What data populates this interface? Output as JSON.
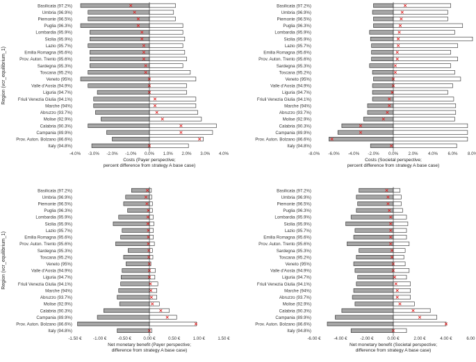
{
  "colors": {
    "low_bar": "#a6a6a6",
    "high_bar": "#ffffff",
    "bar_stroke": "#222222",
    "marker": "#e02020",
    "base_line": "#333333"
  },
  "regions": [
    "Basilicata (97.2%)",
    "Umbria (96.9%)",
    "Piemonte (96.5%)",
    "Puglia (96.3%)",
    "Lombardia (95.9%)",
    "Sicilia (95.9%)",
    "Lazio (95.7%)",
    "Emilia Romagna (95.6%)",
    "Prov. Auton. Trento (95.6%)",
    "Sardegna (95.3%)",
    "Toscana (95.2%)",
    "Veneto (95%)",
    "Valle d'Aosta (94.9%)",
    "Liguria (94.7%)",
    "Friuli Venezia Giulia (94.1%)",
    "Marche (94%)",
    "Abruzzo (93.7%)",
    "Molise (92.9%)",
    "Calabria (90.3%)",
    "Campania (89.9%)",
    "Prov. Auton. Bolzano (86.6%)",
    "Italy (94.8%)"
  ],
  "chart_data": [
    {
      "type": "bar",
      "subtype": "tornado-range",
      "panel": "top-left",
      "title": "",
      "ylabel": "Region (vcr_equilibrium_1)",
      "xlabel_line1": "Costs (Payer perspective;",
      "xlabel_line2": "percent difference from strategy A base case)",
      "xlim": [
        -4.0,
        4.0
      ],
      "xticks": [
        -4,
        -3,
        -2,
        -1,
        0,
        1,
        2,
        3,
        4
      ],
      "xtick_labels": [
        "-4.0%",
        "-3.0%",
        "-2.0%",
        "-1.0%",
        "0.0%",
        "1.0%",
        "2.0%",
        "3.0%",
        "4.0%"
      ],
      "series": [
        {
          "name": "low",
          "values": [
            -3.7,
            -3.3,
            -3.3,
            -3.7,
            -3.2,
            -3.2,
            -3.3,
            -3.2,
            -3.2,
            -3.2,
            -3.3,
            -3.7,
            -3.3,
            -2.8,
            -3.0,
            -3.0,
            -2.9,
            -2.6,
            -3.3,
            -2.3,
            -2.0,
            -3.1
          ]
        },
        {
          "name": "high",
          "values": [
            1.4,
            1.3,
            1.4,
            1.8,
            1.8,
            1.9,
            1.8,
            1.9,
            2.0,
            1.8,
            2.2,
            2.5,
            2.0,
            2.0,
            2.5,
            2.5,
            2.6,
            2.8,
            3.6,
            3.4,
            2.9,
            2.1
          ]
        },
        {
          "name": "base",
          "values": [
            -1.0,
            -0.8,
            -0.6,
            -0.6,
            -0.4,
            -0.4,
            -0.3,
            -0.3,
            -0.3,
            -0.2,
            -0.2,
            0.0,
            0.0,
            0.0,
            0.3,
            0.3,
            0.4,
            0.7,
            1.7,
            1.7,
            2.7,
            0.0
          ]
        }
      ]
    },
    {
      "type": "bar",
      "subtype": "tornado-range",
      "panel": "top-right",
      "title": "",
      "ylabel": "",
      "xlabel_line1": "Costs (Societal perspective;",
      "xlabel_line2": "percent difference from strategy A base case)",
      "xlim": [
        -8.0,
        8.0
      ],
      "xticks": [
        -8,
        -6,
        -4,
        -2,
        0,
        2,
        4,
        6,
        8
      ],
      "xtick_labels": [
        "-8.0%",
        "-6.0%",
        "-4.0%",
        "-2.0%",
        "0.0%",
        "2.0%",
        "4.0%",
        "6.0%",
        "8.0%"
      ],
      "series": [
        {
          "name": "low",
          "values": [
            -2.0,
            -2.1,
            -2.0,
            -2.0,
            -2.4,
            -2.3,
            -2.2,
            -2.2,
            -2.2,
            -2.4,
            -2.1,
            -2.0,
            -2.1,
            -2.1,
            -2.1,
            -2.6,
            -2.6,
            -3.0,
            -5.2,
            -5.6,
            -6.5,
            -2.3
          ]
        },
        {
          "name": "high",
          "values": [
            5.8,
            5.5,
            5.5,
            7.0,
            6.2,
            8.0,
            6.5,
            5.8,
            6.5,
            5.8,
            6.2,
            6.8,
            6.0,
            5.5,
            6.1,
            6.3,
            6.3,
            6.2,
            7.5,
            7.5,
            7.5,
            6.4
          ]
        },
        {
          "name": "base",
          "values": [
            1.2,
            0.9,
            0.8,
            0.7,
            0.6,
            0.5,
            0.5,
            0.4,
            0.4,
            0.2,
            0.2,
            0.0,
            0.0,
            -0.1,
            -0.4,
            -0.4,
            -0.6,
            -1.0,
            -3.3,
            -3.3,
            -6.2,
            -0.2
          ]
        }
      ]
    },
    {
      "type": "bar",
      "subtype": "tornado-range",
      "panel": "bottom-left",
      "title": "",
      "ylabel": "Region (vcr_equilibrium_1)",
      "xlabel_line1": "Net monetary benefit (Payer perspective;",
      "xlabel_line2": "difference from strategy A base case)",
      "xlim": [
        -1.5,
        1.5
      ],
      "xticks": [
        -1.5,
        -1.0,
        -0.5,
        0,
        0.5,
        1.0,
        1.5
      ],
      "xtick_labels": [
        "-1.50 €",
        "-1.00 €",
        "-0.50 €",
        "0.00 €",
        "0.50 €",
        "1.00 €",
        "1.50 €"
      ],
      "series": [
        {
          "name": "low",
          "values": [
            -0.36,
            -0.48,
            -0.52,
            -0.44,
            -0.62,
            -0.73,
            -0.55,
            -0.58,
            -0.68,
            -0.43,
            -0.52,
            -0.47,
            -0.55,
            -0.57,
            -0.58,
            -0.62,
            -0.65,
            -0.6,
            -0.92,
            -1.05,
            -1.45,
            -0.65
          ]
        },
        {
          "name": "high",
          "values": [
            0.04,
            0.05,
            0.06,
            0.06,
            0.08,
            0.09,
            0.08,
            0.08,
            0.1,
            0.06,
            0.07,
            0.03,
            0.12,
            0.11,
            0.17,
            0.15,
            0.15,
            0.2,
            0.4,
            0.55,
            0.95,
            0.05
          ]
        },
        {
          "name": "base",
          "values": [
            -0.04,
            -0.07,
            -0.05,
            -0.02,
            -0.03,
            -0.03,
            -0.02,
            -0.02,
            -0.02,
            -0.01,
            -0.01,
            0.0,
            0.0,
            0.0,
            0.02,
            0.03,
            0.04,
            0.06,
            0.23,
            0.36,
            0.94,
            0.0
          ]
        }
      ]
    },
    {
      "type": "bar",
      "subtype": "tornado-range",
      "panel": "bottom-right",
      "title": "",
      "ylabel": "",
      "xlabel_line1": "Net monetary benefit (Societal perspective;",
      "xlabel_line2": "difference from strategy A base case)",
      "xlim": [
        -6.0,
        6.0
      ],
      "xticks": [
        -6,
        -4,
        -2,
        0,
        2,
        4,
        6
      ],
      "xtick_labels": [
        "-6.00 €",
        "-4.00 €",
        "-2.00 €",
        "0.00 €",
        "2.00 €",
        "4.00 €",
        "6.00 €"
      ],
      "series": [
        {
          "name": "low",
          "values": [
            -2.6,
            -2.8,
            -2.7,
            -2.8,
            -3.2,
            -3.6,
            -2.9,
            -3.0,
            -3.5,
            -2.6,
            -2.8,
            -3.0,
            -2.9,
            -2.7,
            -2.8,
            -3.0,
            -3.1,
            -2.9,
            -3.9,
            -4.4,
            -5.0,
            -3.2
          ]
        },
        {
          "name": "high",
          "values": [
            0.5,
            0.6,
            0.6,
            0.7,
            1.0,
            1.1,
            1.0,
            1.0,
            1.2,
            0.9,
            0.8,
            0.9,
            1.2,
            1.0,
            1.3,
            1.3,
            1.3,
            1.6,
            2.8,
            3.3,
            4.0,
            1.0
          ]
        },
        {
          "name": "base",
          "values": [
            -0.5,
            -0.4,
            -0.4,
            -0.3,
            -0.2,
            -0.2,
            -0.2,
            -0.2,
            -0.2,
            -0.1,
            -0.1,
            0.0,
            0.0,
            0.1,
            0.2,
            0.3,
            0.3,
            0.5,
            1.5,
            2.0,
            4.0,
            0.0
          ]
        }
      ]
    }
  ]
}
